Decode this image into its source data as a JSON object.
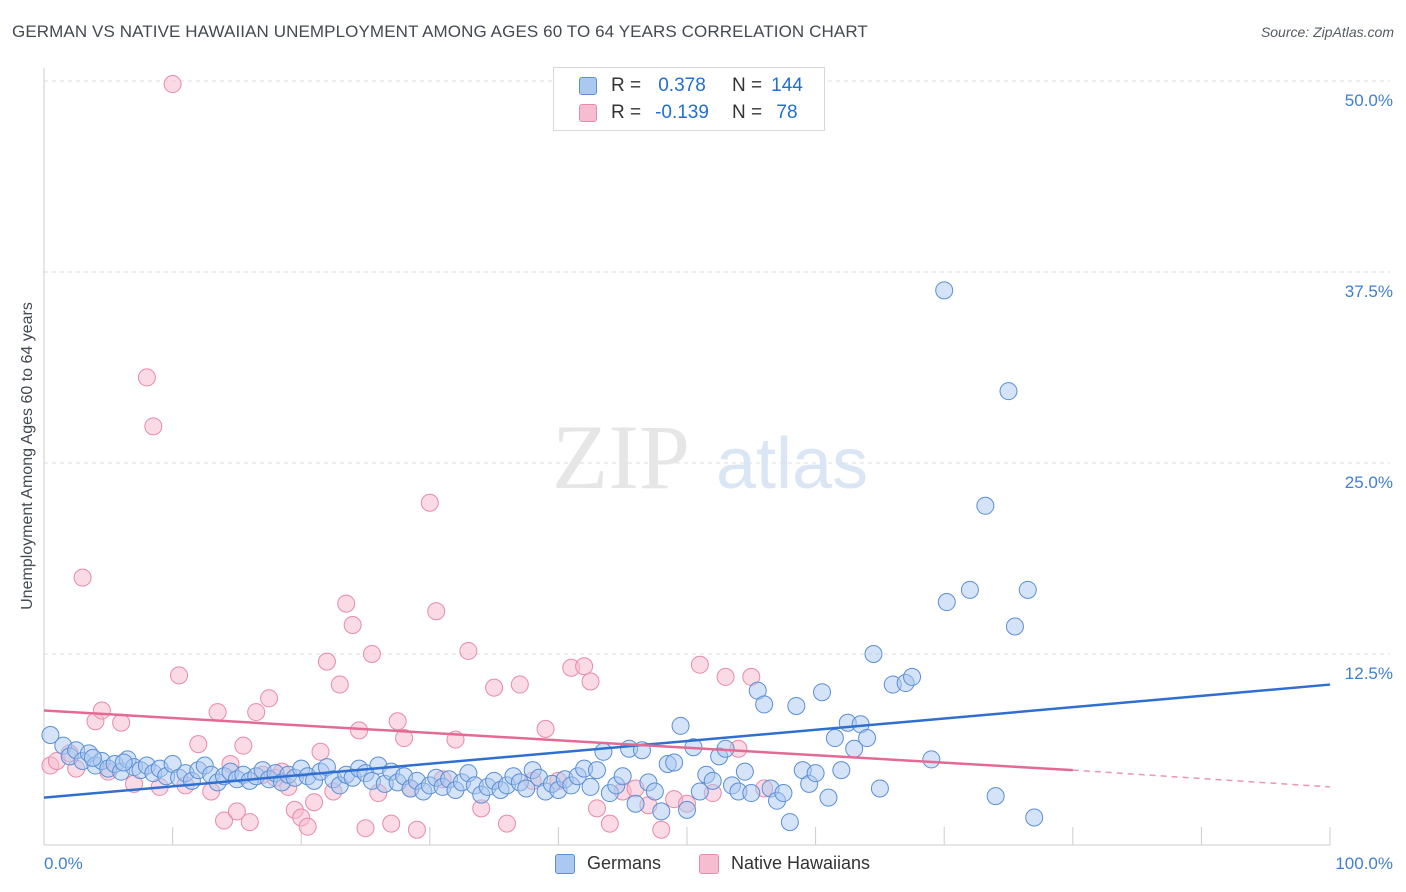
{
  "title": "GERMAN VS NATIVE HAWAIIAN UNEMPLOYMENT AMONG AGES 60 TO 64 YEARS CORRELATION CHART",
  "source": "Source: ZipAtlas.com",
  "watermark": {
    "zip": "ZIP",
    "atlas": "atlas"
  },
  "colors": {
    "german_fill": "#aac8f0",
    "german_stroke": "#5b8fd6",
    "german_line": "#2f6fd0",
    "hawaiian_fill": "#f6bcd0",
    "hawaiian_stroke": "#e98aa8",
    "hawaiian_line": "#e36a94",
    "tick_label": "#3f7fd3",
    "grid": "#dedede"
  },
  "legend": {
    "rows": [
      {
        "r_key": "R =",
        "r_value": "0.378",
        "n_key": "N =",
        "n_value": "144"
      },
      {
        "r_key": "R =",
        "r_value": "-0.139",
        "n_key": "N =",
        "n_value": "78"
      }
    ]
  },
  "bottom_legend": {
    "germans": "Germans",
    "hawaiians": "Native Hawaiians"
  },
  "chart_data": {
    "type": "scatter",
    "title": "GERMAN VS NATIVE HAWAIIAN UNEMPLOYMENT AMONG AGES 60 TO 64 YEARS CORRELATION CHART",
    "xlabel": "",
    "ylabel": "Unemployment Among Ages 60 to 64 years",
    "xlim": [
      0,
      100
    ],
    "ylim": [
      0,
      50
    ],
    "x_tick_labels": [
      "0.0%",
      "100.0%"
    ],
    "y_ticks": [
      12.5,
      25.0,
      37.5,
      50.0
    ],
    "y_tick_labels": [
      "12.5%",
      "25.0%",
      "37.5%",
      "50.0%"
    ],
    "grid": true,
    "series": [
      {
        "name": "Germans",
        "R": 0.378,
        "N": 144,
        "trend": {
          "x": [
            0,
            100
          ],
          "y": [
            3.1,
            10.5
          ]
        },
        "points": [
          [
            0.5,
            7.2
          ],
          [
            1.5,
            6.5
          ],
          [
            2,
            5.8
          ],
          [
            2.5,
            6.2
          ],
          [
            3,
            5.5
          ],
          [
            3.5,
            6.0
          ],
          [
            4,
            5.2
          ],
          [
            4.5,
            5.5
          ],
          [
            5,
            5.0
          ],
          [
            5.5,
            5.3
          ],
          [
            6,
            4.8
          ],
          [
            6.5,
            5.6
          ],
          [
            7,
            5.1
          ],
          [
            7.5,
            4.9
          ],
          [
            8,
            5.2
          ],
          [
            8.5,
            4.7
          ],
          [
            9,
            5.0
          ],
          [
            9.5,
            4.5
          ],
          [
            10,
            5.3
          ],
          [
            10.5,
            4.4
          ],
          [
            11,
            4.7
          ],
          [
            11.5,
            4.2
          ],
          [
            12,
            4.9
          ],
          [
            12.5,
            5.2
          ],
          [
            13,
            4.6
          ],
          [
            13.5,
            4.1
          ],
          [
            14,
            4.5
          ],
          [
            14.5,
            4.8
          ],
          [
            15,
            4.3
          ],
          [
            15.5,
            4.6
          ],
          [
            16,
            4.2
          ],
          [
            16.5,
            4.5
          ],
          [
            17,
            4.9
          ],
          [
            17.5,
            4.3
          ],
          [
            18,
            4.7
          ],
          [
            18.5,
            4.1
          ],
          [
            19,
            4.6
          ],
          [
            19.5,
            4.4
          ],
          [
            20,
            5.0
          ],
          [
            20.5,
            4.5
          ],
          [
            21,
            4.2
          ],
          [
            21.5,
            4.8
          ],
          [
            22,
            5.1
          ],
          [
            22.5,
            4.3
          ],
          [
            23,
            3.9
          ],
          [
            23.5,
            4.6
          ],
          [
            24,
            4.4
          ],
          [
            24.5,
            5.0
          ],
          [
            25,
            4.7
          ],
          [
            25.5,
            4.2
          ],
          [
            26,
            5.2
          ],
          [
            26.5,
            4.0
          ],
          [
            27,
            4.8
          ],
          [
            27.5,
            4.1
          ],
          [
            28,
            4.5
          ],
          [
            28.5,
            3.7
          ],
          [
            29,
            4.2
          ],
          [
            29.5,
            3.5
          ],
          [
            30,
            3.9
          ],
          [
            30.5,
            4.4
          ],
          [
            31,
            3.8
          ],
          [
            31.5,
            4.3
          ],
          [
            32,
            3.6
          ],
          [
            32.5,
            4.1
          ],
          [
            33,
            4.7
          ],
          [
            33.5,
            3.9
          ],
          [
            34,
            3.3
          ],
          [
            34.5,
            3.8
          ],
          [
            35,
            4.2
          ],
          [
            35.5,
            3.6
          ],
          [
            36,
            3.9
          ],
          [
            36.5,
            4.5
          ],
          [
            37,
            4.1
          ],
          [
            37.5,
            3.7
          ],
          [
            38,
            4.9
          ],
          [
            38.5,
            4.4
          ],
          [
            39,
            3.5
          ],
          [
            39.5,
            4.0
          ],
          [
            40,
            3.6
          ],
          [
            40.5,
            4.3
          ],
          [
            41,
            3.9
          ],
          [
            41.5,
            4.5
          ],
          [
            42,
            5.0
          ],
          [
            42.5,
            3.8
          ],
          [
            43,
            4.9
          ],
          [
            43.5,
            6.1
          ],
          [
            44,
            3.4
          ],
          [
            44.5,
            3.9
          ],
          [
            45,
            4.5
          ],
          [
            45.5,
            6.3
          ],
          [
            46,
            2.7
          ],
          [
            46.5,
            6.2
          ],
          [
            47,
            4.1
          ],
          [
            47.5,
            3.5
          ],
          [
            48,
            2.2
          ],
          [
            48.5,
            5.3
          ],
          [
            49,
            5.4
          ],
          [
            49.5,
            7.8
          ],
          [
            50,
            2.3
          ],
          [
            50.5,
            6.4
          ],
          [
            51,
            3.5
          ],
          [
            51.5,
            4.6
          ],
          [
            52,
            4.2
          ],
          [
            52.5,
            5.8
          ],
          [
            53,
            6.3
          ],
          [
            53.5,
            3.9
          ],
          [
            54,
            3.5
          ],
          [
            54.5,
            4.8
          ],
          [
            55,
            3.4
          ],
          [
            55.5,
            10.1
          ],
          [
            56,
            9.2
          ],
          [
            56.5,
            3.7
          ],
          [
            57,
            2.9
          ],
          [
            57.5,
            3.4
          ],
          [
            58,
            1.5
          ],
          [
            58.5,
            9.1
          ],
          [
            59,
            4.9
          ],
          [
            59.5,
            4.0
          ],
          [
            60,
            4.7
          ],
          [
            60.5,
            10.0
          ],
          [
            61,
            3.1
          ],
          [
            61.5,
            7.0
          ],
          [
            62,
            4.9
          ],
          [
            62.5,
            8.0
          ],
          [
            63,
            6.3
          ],
          [
            63.5,
            7.9
          ],
          [
            64,
            7.0
          ],
          [
            64.5,
            12.5
          ],
          [
            65,
            3.7
          ],
          [
            66,
            10.5
          ],
          [
            67,
            10.6
          ],
          [
            67.5,
            11.0
          ],
          [
            69,
            5.6
          ],
          [
            70,
            36.3
          ],
          [
            70.2,
            15.9
          ],
          [
            72,
            16.7
          ],
          [
            74,
            3.2
          ],
          [
            75,
            29.7
          ],
          [
            75.5,
            14.3
          ],
          [
            77,
            1.8
          ],
          [
            73.2,
            22.2
          ],
          [
            76.5,
            16.7
          ],
          [
            3.8,
            5.7
          ],
          [
            6.2,
            5.4
          ]
        ]
      },
      {
        "name": "Native Hawaiians",
        "R": -0.139,
        "N": 78,
        "trend": {
          "x": [
            0,
            80
          ],
          "y": [
            8.8,
            4.9
          ]
        },
        "trend_dashed": {
          "x": [
            80,
            100
          ],
          "y": [
            4.9,
            3.8
          ]
        },
        "points": [
          [
            0.5,
            5.2
          ],
          [
            1,
            5.5
          ],
          [
            2,
            6.0
          ],
          [
            2.5,
            5.0
          ],
          [
            3,
            17.5
          ],
          [
            4,
            8.1
          ],
          [
            4.5,
            8.8
          ],
          [
            5,
            4.8
          ],
          [
            6,
            8.0
          ],
          [
            7,
            4.0
          ],
          [
            8,
            30.6
          ],
          [
            8.5,
            27.4
          ],
          [
            9,
            3.8
          ],
          [
            10,
            49.8
          ],
          [
            10.5,
            11.1
          ],
          [
            11,
            3.9
          ],
          [
            12,
            6.6
          ],
          [
            13,
            3.5
          ],
          [
            13.5,
            8.7
          ],
          [
            14,
            1.6
          ],
          [
            14.5,
            5.3
          ],
          [
            15,
            2.2
          ],
          [
            15.5,
            6.5
          ],
          [
            16,
            1.5
          ],
          [
            16.5,
            8.7
          ],
          [
            17,
            4.6
          ],
          [
            17.5,
            9.6
          ],
          [
            18,
            4.4
          ],
          [
            18.5,
            4.8
          ],
          [
            19,
            3.8
          ],
          [
            19.5,
            2.3
          ],
          [
            20,
            1.8
          ],
          [
            20.5,
            1.2
          ],
          [
            21,
            2.8
          ],
          [
            21.5,
            6.1
          ],
          [
            22,
            12.0
          ],
          [
            22.5,
            3.5
          ],
          [
            23,
            10.5
          ],
          [
            23.5,
            15.8
          ],
          [
            24,
            14.4
          ],
          [
            24.5,
            7.5
          ],
          [
            25,
            1.1
          ],
          [
            25.5,
            12.5
          ],
          [
            26,
            3.4
          ],
          [
            27,
            1.4
          ],
          [
            27.5,
            8.1
          ],
          [
            28,
            7.0
          ],
          [
            28.5,
            3.7
          ],
          [
            29,
            1.0
          ],
          [
            30,
            22.4
          ],
          [
            30.5,
            15.3
          ],
          [
            31,
            4.3
          ],
          [
            32,
            6.9
          ],
          [
            33,
            12.7
          ],
          [
            34,
            2.4
          ],
          [
            35,
            10.3
          ],
          [
            36,
            1.4
          ],
          [
            37,
            10.5
          ],
          [
            38,
            4.2
          ],
          [
            39,
            7.6
          ],
          [
            40,
            4.2
          ],
          [
            41,
            11.6
          ],
          [
            42,
            11.7
          ],
          [
            42.5,
            10.7
          ],
          [
            43,
            2.4
          ],
          [
            44,
            1.4
          ],
          [
            45,
            3.5
          ],
          [
            46,
            3.7
          ],
          [
            47,
            2.6
          ],
          [
            48,
            1.0
          ],
          [
            49,
            3.0
          ],
          [
            50,
            2.7
          ],
          [
            51,
            11.8
          ],
          [
            52,
            3.4
          ],
          [
            53,
            11.0
          ],
          [
            54,
            6.3
          ],
          [
            55,
            11.0
          ],
          [
            56,
            3.7
          ]
        ]
      }
    ]
  }
}
